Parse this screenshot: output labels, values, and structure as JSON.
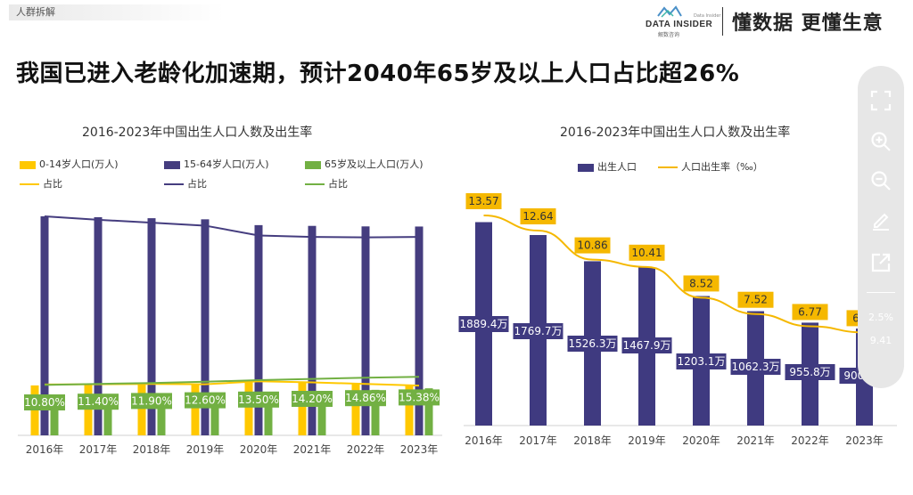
{
  "header": {
    "section_label": "人群拆解",
    "brand_name": "DATA INSIDER",
    "brand_sub": "解数咨询",
    "brand_sup": "Data Insider",
    "slogan": "懂数据 更懂生意"
  },
  "headline": "我国已进入老龄化加速期，预计2040年65岁及以上人口占比超26%",
  "colors": {
    "yellow": "#FFC800",
    "navy": "#453D7F",
    "green": "#72B043",
    "birthbar": "#3F3A80",
    "rateline": "#F5B800",
    "toolbar": "#E7E7E7"
  },
  "chart_data": [
    {
      "type": "bar",
      "title": "2016-2023年中国出生人口人数及出生率",
      "categories": [
        "2016年",
        "2017年",
        "2018年",
        "2019年",
        "2020年",
        "2021年",
        "2022年",
        "2023年"
      ],
      "legend": [
        {
          "label": "0-14岁人口(万人)",
          "kind": "box",
          "color": "#FFC800"
        },
        {
          "label": "15-64岁人口(万人)",
          "kind": "box",
          "color": "#453D7F"
        },
        {
          "label": "65岁及以上人口(万人)",
          "kind": "box",
          "color": "#72B043"
        },
        {
          "label": "占比",
          "kind": "line",
          "color": "#FFC800"
        },
        {
          "label": "占比",
          "kind": "line",
          "color": "#453D7F"
        },
        {
          "label": "占比",
          "kind": "line",
          "color": "#72B043"
        }
      ],
      "series": [
        {
          "name": "0-14岁人口(万人)",
          "values": [
            23008,
            23348,
            23523,
            23689,
            25277,
            24678,
            23908,
            23063
          ]
        },
        {
          "name": "15-64岁人口(万人)",
          "values": [
            100943,
            100528,
            100065,
            99552,
            96871,
            96526,
            96289,
            96228
          ]
        },
        {
          "name": "65岁及以上人口(万人)",
          "values": [
            15003,
            15831,
            16658,
            17603,
            19064,
            20056,
            20978,
            21676
          ]
        }
      ],
      "ratio_series": [
        {
          "name": "0-14岁占比",
          "values": [
            16.7,
            16.8,
            16.9,
            16.8,
            17.9,
            17.5,
            16.9,
            16.3
          ]
        },
        {
          "name": "15-64岁占比",
          "values": [
            72.5,
            71.8,
            71.2,
            70.6,
            68.6,
            68.3,
            68.2,
            68.3
          ]
        },
        {
          "name": "65岁及以上占比",
          "values": [
            10.8,
            11.4,
            11.9,
            12.6,
            13.5,
            14.2,
            14.86,
            15.38
          ]
        }
      ],
      "ratio_labels": [
        "10.80%",
        "11.40%",
        "11.90%",
        "12.60%",
        "13.50%",
        "14.20%",
        "14.86%",
        "15.38%"
      ],
      "ylim": [
        0,
        112000
      ]
    },
    {
      "type": "bar",
      "title": "2016-2023年中国出生人口人数及出生率",
      "categories": [
        "2016年",
        "2017年",
        "2018年",
        "2019年",
        "2020年",
        "2021年",
        "2022年",
        "2023年"
      ],
      "legend": [
        {
          "label": "出生人口",
          "kind": "box",
          "color": "#3F3A80"
        },
        {
          "label": "人口出生率（‰）",
          "kind": "line",
          "color": "#F5B800"
        }
      ],
      "series": [
        {
          "name": "出生人口",
          "values": [
            1889.4,
            1769.7,
            1526.3,
            1467.9,
            1203.1,
            1062.3,
            955.8,
            900.8
          ],
          "labels": [
            "1889.4万",
            "1769.7万",
            "1526.3万",
            "1467.9万",
            "1203.1万",
            "1062.3万",
            "955.8万",
            "900.8万"
          ]
        },
        {
          "name": "人口出生率（‰）",
          "values": [
            13.57,
            12.64,
            10.86,
            10.41,
            8.52,
            7.52,
            6.77,
            6.39
          ],
          "labels": [
            "13.57",
            "12.64",
            "10.86",
            "10.41",
            "8.52",
            "7.52",
            "6.77",
            "6.39"
          ]
        }
      ],
      "ylim": [
        0,
        2150
      ]
    }
  ],
  "toolbar": {
    "buttons": [
      "fullscreen-icon",
      "zoom-in-icon",
      "zoom-out-icon",
      "pencil-icon",
      "share-icon"
    ],
    "ghost_text_a": "9.41",
    "ghost_text_b": "2.5%"
  }
}
